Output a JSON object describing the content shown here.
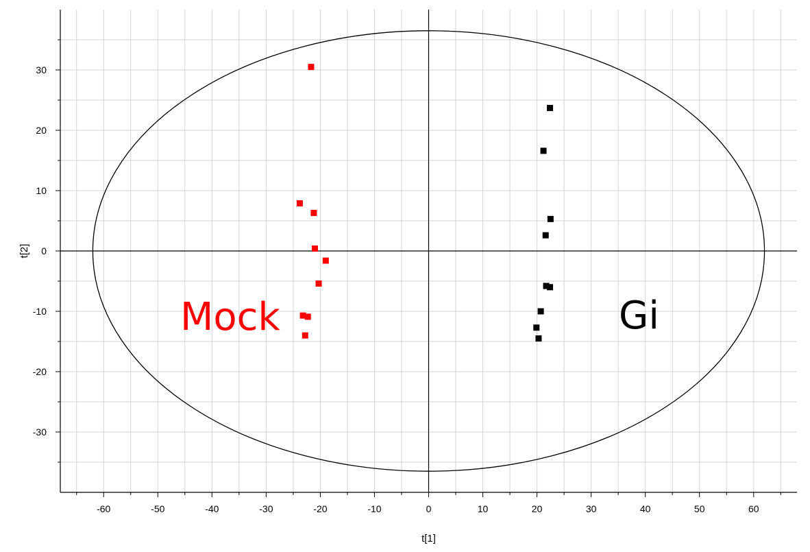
{
  "chart_data": {
    "type": "scatter",
    "title": "",
    "xlabel": "t[1]",
    "ylabel": "t[2]",
    "xlim": [
      -68,
      68
    ],
    "ylim": [
      -40,
      40
    ],
    "x_ticks": [
      -60,
      -50,
      -40,
      -30,
      -20,
      -10,
      0,
      10,
      20,
      30,
      40,
      50,
      60
    ],
    "y_ticks": [
      -30,
      -20,
      -10,
      0,
      10,
      20,
      30
    ],
    "grid": true,
    "ellipse": {
      "rx": 62,
      "ry": 36.5
    },
    "series": [
      {
        "name": "Mock",
        "color": "#ff0000",
        "points": [
          {
            "x": -21.7,
            "y": 30.5
          },
          {
            "x": -23.8,
            "y": 7.9
          },
          {
            "x": -21.2,
            "y": 6.3
          },
          {
            "x": -21.0,
            "y": 0.4
          },
          {
            "x": -19.0,
            "y": -1.6
          },
          {
            "x": -20.3,
            "y": -5.4
          },
          {
            "x": -23.2,
            "y": -10.7
          },
          {
            "x": -22.3,
            "y": -10.9
          },
          {
            "x": -22.8,
            "y": -14.0
          }
        ]
      },
      {
        "name": "Gi",
        "color": "#000000",
        "points": [
          {
            "x": 22.4,
            "y": 23.7
          },
          {
            "x": 21.2,
            "y": 16.6
          },
          {
            "x": 22.5,
            "y": 5.3
          },
          {
            "x": 21.6,
            "y": 2.6
          },
          {
            "x": 21.7,
            "y": -5.8
          },
          {
            "x": 22.4,
            "y": -6.0
          },
          {
            "x": 20.7,
            "y": -10.0
          },
          {
            "x": 19.9,
            "y": -12.7
          },
          {
            "x": 20.3,
            "y": -14.5
          }
        ]
      }
    ],
    "annotations": [
      {
        "text": "Mock",
        "color": "#ff0000"
      },
      {
        "text": "Gi",
        "color": "#000000"
      }
    ]
  }
}
